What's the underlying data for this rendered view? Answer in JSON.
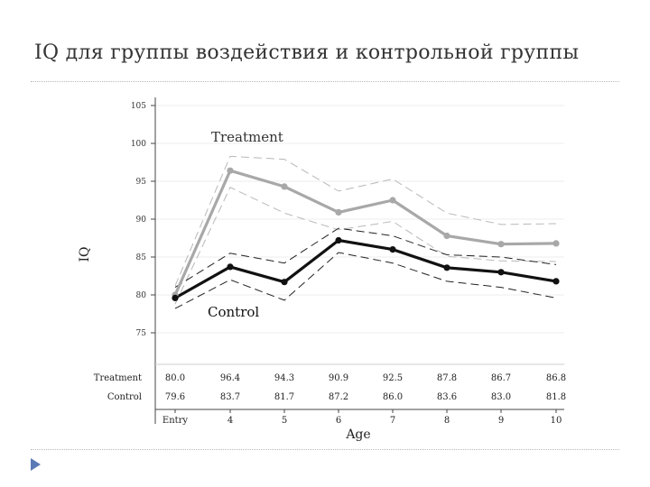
{
  "slide": {
    "title": "IQ для группы воздействия и контрольной группы"
  },
  "chart_data": {
    "type": "line",
    "ylabel": "IQ",
    "xlabel": "Age",
    "x": [
      "Entry",
      "4",
      "5",
      "6",
      "7",
      "8",
      "9",
      "10"
    ],
    "ylim": [
      70,
      105
    ],
    "yticks": [
      75,
      80,
      85,
      90,
      95,
      100,
      105
    ],
    "grid": true,
    "series": [
      {
        "name": "Treatment",
        "color": "#a8a8a8",
        "values": [
          80.0,
          96.4,
          94.3,
          90.9,
          92.5,
          87.8,
          86.7,
          86.8
        ],
        "upper": [
          81.2,
          98.3,
          97.9,
          93.7,
          95.3,
          90.8,
          89.3,
          89.4
        ],
        "lower": [
          78.8,
          94.2,
          90.8,
          88.6,
          89.7,
          85.1,
          84.5,
          84.4
        ],
        "value_labels": [
          "80.0",
          "96.4",
          "94.3",
          "90.9",
          "92.5",
          "87.8",
          "86.7",
          "86.8"
        ]
      },
      {
        "name": "Control",
        "color": "#111111",
        "values": [
          79.6,
          83.7,
          81.7,
          87.2,
          86.0,
          83.6,
          83.0,
          81.8
        ],
        "upper": [
          81.0,
          85.5,
          84.2,
          88.8,
          87.8,
          85.3,
          85.0,
          84.0
        ],
        "lower": [
          78.2,
          82.0,
          79.3,
          85.6,
          84.2,
          81.8,
          81.0,
          79.6
        ],
        "value_labels": [
          "79.6",
          "83.7",
          "81.7",
          "87.2",
          "86.0",
          "83.6",
          "83.0",
          "81.8"
        ]
      }
    ]
  }
}
